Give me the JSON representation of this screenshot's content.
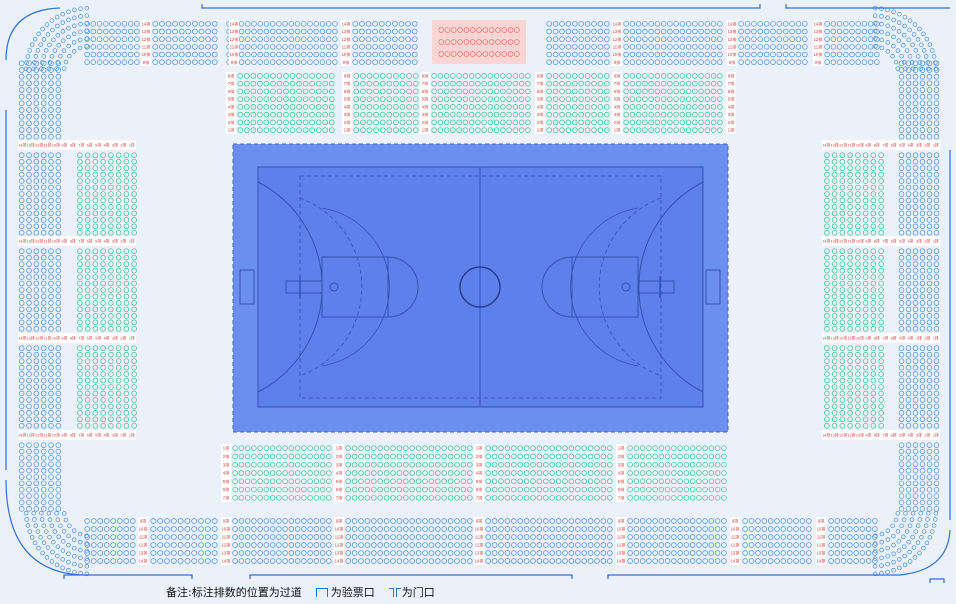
{
  "colors": {
    "background": "#eaf1fb",
    "court_outer": "#6b8ff0",
    "court_inner": "#5d80ea",
    "court_line": "#3452b5",
    "seat_blue": "#4a8fe0",
    "seat_green": "#3fc58a",
    "seat_red": "#ee6b6b",
    "vip_bg": "#f9d6d3",
    "label_bg": "#ffffff",
    "label_text": "#d03a3a",
    "gate_line": "#2f6fd8"
  },
  "legend": {
    "note": "备注:标注排数的位置为过道",
    "ticket_gate": "为验票口",
    "door": "为门口"
  },
  "row_labels": {
    "top_upper": [
      "14排",
      "13排",
      "12排",
      "11排",
      "10排",
      "9排"
    ],
    "top_lower": [
      "8排",
      "7排",
      "6排",
      "5排",
      "4排",
      "3排",
      "2排",
      "1排"
    ],
    "bottom_lower": [
      "1排",
      "2排",
      "3排",
      "4排",
      "5排",
      "6排",
      "7排"
    ],
    "bottom_upper": [
      "9排",
      "10排",
      "11排",
      "12排",
      "13排",
      "14排"
    ],
    "side": [
      "14排",
      "13排",
      "12排",
      "11排",
      "10排",
      "9排",
      "8排",
      "7排",
      "6排",
      "5排",
      "4排",
      "3排",
      "2排",
      "1排"
    ]
  },
  "icons": [
    "ticket-gate-icon",
    "door-icon",
    "basketball-court-icon"
  ]
}
